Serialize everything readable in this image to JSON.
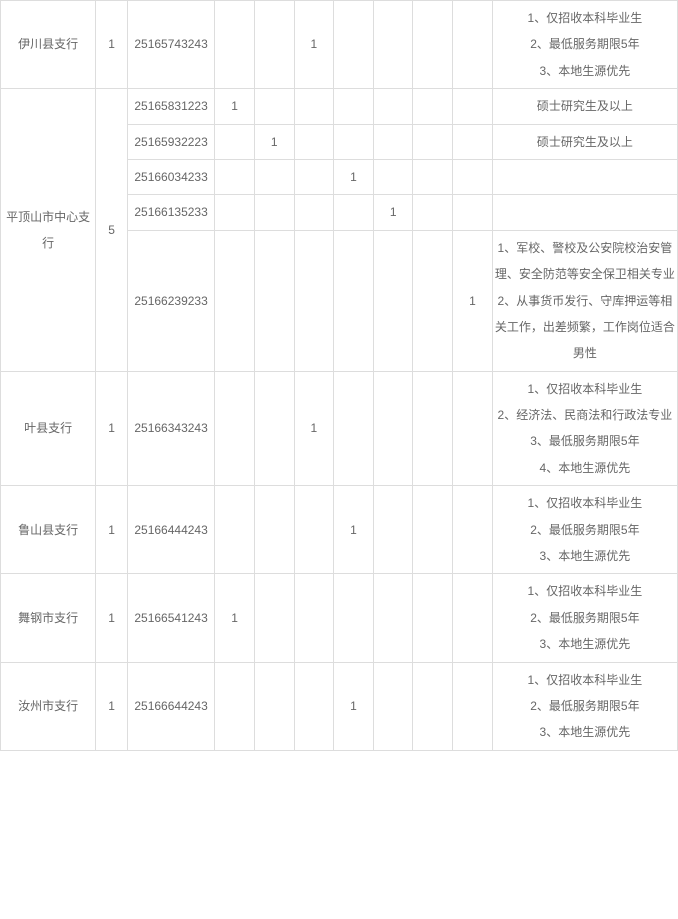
{
  "table": {
    "rows": [
      {
        "branch": "伊川县支行",
        "quota": "1",
        "code": "25165743243",
        "positions": [
          "",
          "",
          "1",
          "",
          "",
          "",
          ""
        ],
        "remarks": [
          "1、仅招收本科毕业生",
          "2、最低服务期限5年",
          "3、本地生源优先"
        ],
        "rowspan": 1
      },
      {
        "branch": "平顶山市中心支行",
        "quota": "5",
        "rowspan": 5,
        "subrows": [
          {
            "code": "25165831223",
            "positions": [
              "1",
              "",
              "",
              "",
              "",
              "",
              ""
            ],
            "remarks": [
              "硕士研究生及以上"
            ]
          },
          {
            "code": "25165932223",
            "positions": [
              "",
              "1",
              "",
              "",
              "",
              "",
              ""
            ],
            "remarks": [
              "硕士研究生及以上"
            ]
          },
          {
            "code": "25166034233",
            "positions": [
              "",
              "",
              "",
              "1",
              "",
              "",
              ""
            ],
            "remarks": []
          },
          {
            "code": "25166135233",
            "positions": [
              "",
              "",
              "",
              "",
              "1",
              "",
              ""
            ],
            "remarks": []
          },
          {
            "code": "25166239233",
            "positions": [
              "",
              "",
              "",
              "",
              "",
              "",
              "1"
            ],
            "remarks": [
              "1、军校、警校及公安院校治安管理、安全防范等安全保卫相关专业",
              "2、从事货币发行、守库押运等相关工作，出差频繁，工作岗位适合男性"
            ]
          }
        ]
      },
      {
        "branch": "叶县支行",
        "quota": "1",
        "code": "25166343243",
        "positions": [
          "",
          "",
          "1",
          "",
          "",
          "",
          ""
        ],
        "remarks": [
          "1、仅招收本科毕业生",
          "2、经济法、民商法和行政法专业",
          "3、最低服务期限5年",
          "4、本地生源优先"
        ],
        "rowspan": 1
      },
      {
        "branch": "鲁山县支行",
        "quota": "1",
        "code": "25166444243",
        "positions": [
          "",
          "",
          "",
          "1",
          "",
          "",
          ""
        ],
        "remarks": [
          "1、仅招收本科毕业生",
          "2、最低服务期限5年",
          "3、本地生源优先"
        ],
        "rowspan": 1
      },
      {
        "branch": "舞钢市支行",
        "quota": "1",
        "code": "25166541243",
        "positions": [
          "1",
          "",
          "",
          "",
          "",
          "",
          ""
        ],
        "remarks": [
          "1、仅招收本科毕业生",
          "2、最低服务期限5年",
          "3、本地生源优先"
        ],
        "rowspan": 1
      },
      {
        "branch": "汝州市支行",
        "quota": "1",
        "code": "25166644243",
        "positions": [
          "",
          "",
          "",
          "1",
          "",
          "",
          ""
        ],
        "remarks": [
          "1、仅招收本科毕业生",
          "2、最低服务期限5年",
          "3、本地生源优先"
        ],
        "rowspan": 1
      }
    ]
  }
}
